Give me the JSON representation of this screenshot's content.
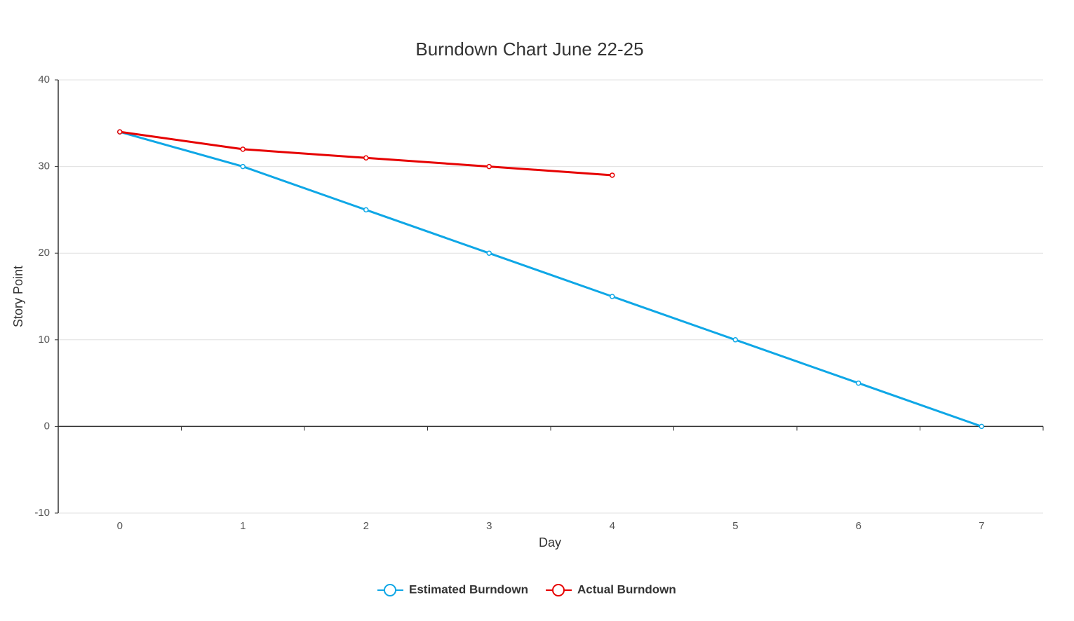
{
  "chart_data": {
    "type": "line",
    "title": "Burndown Chart June 22-25",
    "x_label": "Day",
    "y_label": "Story Point",
    "categories": [
      "0",
      "1",
      "2",
      "3",
      "4",
      "5",
      "6",
      "7"
    ],
    "series": [
      {
        "name": "Estimated Burndown",
        "color": "#0fa7e6",
        "values": [
          34,
          30,
          25,
          20,
          15,
          10,
          5,
          0
        ]
      },
      {
        "name": "Actual Burndown",
        "color": "#e60000",
        "values": [
          34,
          32,
          31,
          30,
          29,
          null,
          null,
          null
        ]
      }
    ],
    "ylim": [
      -10,
      40
    ],
    "yticks": [
      -10,
      0,
      10,
      20,
      30,
      40
    ],
    "grid": true,
    "legend": "bottom"
  }
}
